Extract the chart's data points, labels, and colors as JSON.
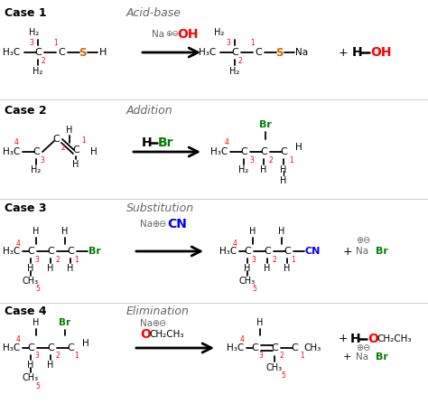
{
  "bg_color": "#ffffff",
  "fig_w": 4.74,
  "fig_h": 4.47,
  "dpi": 100,
  "cases": [
    {
      "label": "Case 1",
      "type": "Acid-base"
    },
    {
      "label": "Case 2",
      "type": "Addition"
    },
    {
      "label": "Case 3",
      "type": "Substitution"
    },
    {
      "label": "Case 4",
      "type": "Elimination"
    }
  ],
  "colors": {
    "black": "#000000",
    "red": "#ff0000",
    "green": "#008000",
    "orange": "#cc6600",
    "blue": "#0000ff",
    "gray": "#888888",
    "darkgray": "#666666"
  }
}
